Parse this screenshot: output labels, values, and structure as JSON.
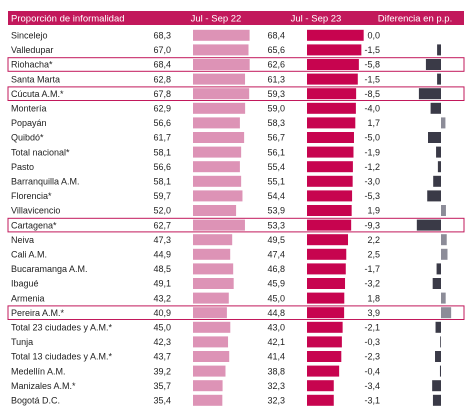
{
  "chart_data": {
    "type": "bar",
    "headers": {
      "category": "Proporción de informalidad",
      "period_1": "Jul - Sep 22",
      "period_2": "Jul - Sep 23",
      "difference": "Diferencia en p.p."
    },
    "categories": [
      "Sincelejo",
      "Valledupar",
      "Riohacha*",
      "Santa Marta",
      "Cúcuta A.M.*",
      "Montería",
      "Popayán",
      "Quibdó*",
      "Total nacional*",
      "Pasto",
      "Barranquilla A.M.",
      "Florencia*",
      "Villavicencio",
      "Cartagena*",
      "Neiva",
      "Cali A.M.",
      "Bucaramanga A.M.",
      "Ibagué",
      "Armenia",
      "Pereira A.M.*",
      "Total 23 ciudades y A.M.*",
      "Tunja",
      "Total 13 ciudades y A.M.*",
      "Medellín A.M.",
      "Manizales A.M.*",
      "Bogotá D.C."
    ],
    "series": [
      {
        "name": "Jul - Sep 22",
        "values": [
          68.3,
          67.0,
          68.4,
          62.8,
          67.8,
          62.9,
          56.6,
          61.7,
          58.1,
          56.6,
          58.1,
          59.7,
          52.0,
          62.7,
          47.3,
          44.9,
          48.5,
          49.1,
          43.2,
          40.9,
          45.0,
          42.3,
          43.7,
          39.2,
          35.7,
          35.4
        ]
      },
      {
        "name": "Jul - Sep 23",
        "values": [
          68.4,
          65.6,
          62.6,
          61.3,
          59.3,
          59.0,
          58.3,
          56.7,
          56.1,
          55.4,
          55.1,
          54.4,
          53.9,
          53.3,
          49.5,
          47.4,
          46.8,
          45.9,
          45.0,
          44.8,
          43.0,
          42.1,
          41.4,
          38.8,
          32.3,
          32.3
        ]
      },
      {
        "name": "Diferencia en p.p.",
        "values": [
          "0,0",
          "-1,5",
          "-5,8",
          "-1,5",
          "-8,5",
          "-4,0",
          "1,7",
          "-5,0",
          "-1,9",
          "-1,2",
          "-3,0",
          "-5,3",
          "1,9",
          "-9,3",
          "2,2",
          "2,5",
          "-1,7",
          "-3,2",
          "1,8",
          "3,9",
          "-2,1",
          "-0,3",
          "-2,3",
          "-0,4",
          "-3,4",
          "-3,1"
        ]
      }
    ],
    "highlighted": [
      "Riohacha*",
      "Cúcuta A.M.*",
      "Cartagena*",
      "Pereira A.M.*"
    ],
    "colors": {
      "header": "#c2185b",
      "bar_2022": "#dd93b6",
      "bar_2023": "#c7044f",
      "diff_negative": "#3a3a47",
      "diff_positive": "#8c8c98",
      "highlight_border": "#c2185b"
    }
  }
}
